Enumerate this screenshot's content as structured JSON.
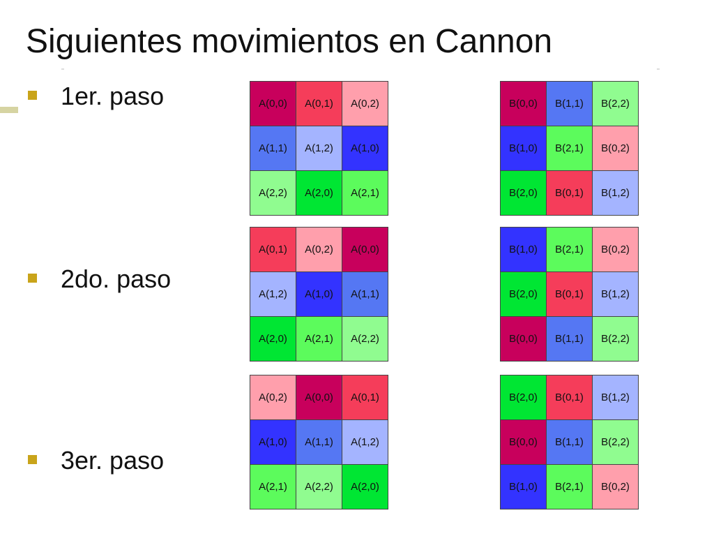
{
  "slide": {
    "title": "Siguientes movimientos en Cannon",
    "steps": [
      {
        "label": "1er. paso"
      },
      {
        "label": "2do. paso"
      },
      {
        "label": "3er. paso"
      }
    ]
  },
  "colors": {
    "bullet": "#c9a41a",
    "00": "#c8005c",
    "01": "#f53d5a",
    "02": "#ff9fac",
    "11": "#5577f3",
    "12": "#a4b4ff",
    "10": "#3333ff",
    "22": "#90fc90",
    "20": "#00e633",
    "21": "#5cfb5c"
  },
  "matrices": {
    "A": [
      [
        "A(0,0)",
        "A(0,1)",
        "A(0,2)",
        "A(1,1)",
        "A(1,2)",
        "A(1,0)",
        "A(2,2)",
        "A(2,0)",
        "A(2,1)"
      ],
      [
        "A(0,1)",
        "A(0,2)",
        "A(0,0)",
        "A(1,2)",
        "A(1,0)",
        "A(1,1)",
        "A(2,0)",
        "A(2,1)",
        "A(2,2)"
      ],
      [
        "A(0,2)",
        "A(0,0)",
        "A(0,1)",
        "A(1,0)",
        "A(1,1)",
        "A(1,2)",
        "A(2,1)",
        "A(2,2)",
        "A(2,0)"
      ]
    ],
    "B": [
      [
        "B(0,0)",
        "B(1,1)",
        "B(2,2)",
        "B(1,0)",
        "B(2,1)",
        "B(0,2)",
        "B(2,0)",
        "B(0,1)",
        "B(1,2)"
      ],
      [
        "B(1,0)",
        "B(2,1)",
        "B(0,2)",
        "B(2,0)",
        "B(0,1)",
        "B(1,2)",
        "B(0,0)",
        "B(1,1)",
        "B(2,2)"
      ],
      [
        "B(2,0)",
        "B(0,1)",
        "B(1,2)",
        "B(0,0)",
        "B(1,1)",
        "B(2,2)",
        "B(1,0)",
        "B(2,1)",
        "B(0,2)"
      ]
    ]
  }
}
